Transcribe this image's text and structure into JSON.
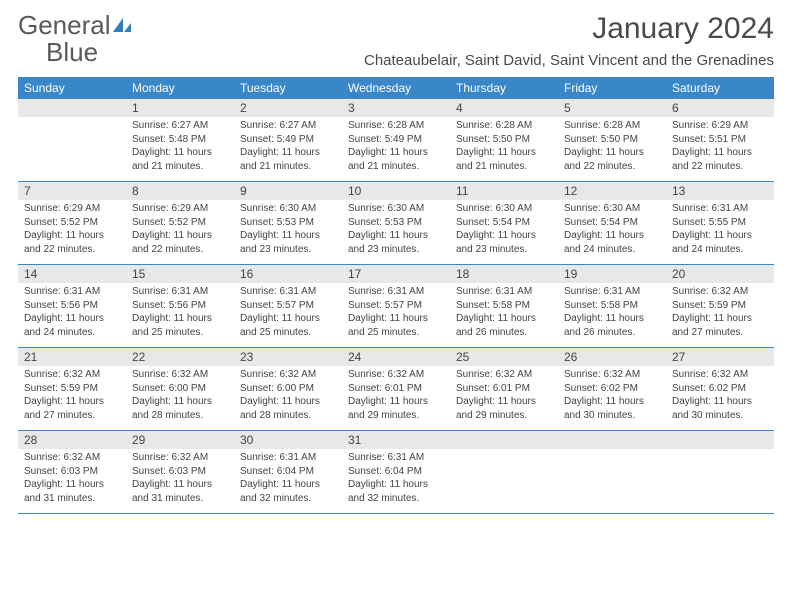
{
  "logo": {
    "text1": "General",
    "text2": "Blue"
  },
  "title": "January 2024",
  "location": "Chateaubelair, Saint David, Saint Vincent and the Grenadines",
  "weekdays": [
    "Sunday",
    "Monday",
    "Tuesday",
    "Wednesday",
    "Thursday",
    "Friday",
    "Saturday"
  ],
  "colors": {
    "header_bg": "#3a87c8",
    "daynum_bg": "#e8e8e8",
    "text": "#444444",
    "logo_gray": "#5a5a5a",
    "logo_blue": "#2f7fbf"
  },
  "weeks": [
    {
      "nums": [
        "",
        "1",
        "2",
        "3",
        "4",
        "5",
        "6"
      ],
      "cells": [
        {
          "empty": true
        },
        {
          "sunrise": "Sunrise: 6:27 AM",
          "sunset": "Sunset: 5:48 PM",
          "day1": "Daylight: 11 hours",
          "day2": "and 21 minutes."
        },
        {
          "sunrise": "Sunrise: 6:27 AM",
          "sunset": "Sunset: 5:49 PM",
          "day1": "Daylight: 11 hours",
          "day2": "and 21 minutes."
        },
        {
          "sunrise": "Sunrise: 6:28 AM",
          "sunset": "Sunset: 5:49 PM",
          "day1": "Daylight: 11 hours",
          "day2": "and 21 minutes."
        },
        {
          "sunrise": "Sunrise: 6:28 AM",
          "sunset": "Sunset: 5:50 PM",
          "day1": "Daylight: 11 hours",
          "day2": "and 21 minutes."
        },
        {
          "sunrise": "Sunrise: 6:28 AM",
          "sunset": "Sunset: 5:50 PM",
          "day1": "Daylight: 11 hours",
          "day2": "and 22 minutes."
        },
        {
          "sunrise": "Sunrise: 6:29 AM",
          "sunset": "Sunset: 5:51 PM",
          "day1": "Daylight: 11 hours",
          "day2": "and 22 minutes."
        }
      ]
    },
    {
      "nums": [
        "7",
        "8",
        "9",
        "10",
        "11",
        "12",
        "13"
      ],
      "cells": [
        {
          "sunrise": "Sunrise: 6:29 AM",
          "sunset": "Sunset: 5:52 PM",
          "day1": "Daylight: 11 hours",
          "day2": "and 22 minutes."
        },
        {
          "sunrise": "Sunrise: 6:29 AM",
          "sunset": "Sunset: 5:52 PM",
          "day1": "Daylight: 11 hours",
          "day2": "and 22 minutes."
        },
        {
          "sunrise": "Sunrise: 6:30 AM",
          "sunset": "Sunset: 5:53 PM",
          "day1": "Daylight: 11 hours",
          "day2": "and 23 minutes."
        },
        {
          "sunrise": "Sunrise: 6:30 AM",
          "sunset": "Sunset: 5:53 PM",
          "day1": "Daylight: 11 hours",
          "day2": "and 23 minutes."
        },
        {
          "sunrise": "Sunrise: 6:30 AM",
          "sunset": "Sunset: 5:54 PM",
          "day1": "Daylight: 11 hours",
          "day2": "and 23 minutes."
        },
        {
          "sunrise": "Sunrise: 6:30 AM",
          "sunset": "Sunset: 5:54 PM",
          "day1": "Daylight: 11 hours",
          "day2": "and 24 minutes."
        },
        {
          "sunrise": "Sunrise: 6:31 AM",
          "sunset": "Sunset: 5:55 PM",
          "day1": "Daylight: 11 hours",
          "day2": "and 24 minutes."
        }
      ]
    },
    {
      "nums": [
        "14",
        "15",
        "16",
        "17",
        "18",
        "19",
        "20"
      ],
      "cells": [
        {
          "sunrise": "Sunrise: 6:31 AM",
          "sunset": "Sunset: 5:56 PM",
          "day1": "Daylight: 11 hours",
          "day2": "and 24 minutes."
        },
        {
          "sunrise": "Sunrise: 6:31 AM",
          "sunset": "Sunset: 5:56 PM",
          "day1": "Daylight: 11 hours",
          "day2": "and 25 minutes."
        },
        {
          "sunrise": "Sunrise: 6:31 AM",
          "sunset": "Sunset: 5:57 PM",
          "day1": "Daylight: 11 hours",
          "day2": "and 25 minutes."
        },
        {
          "sunrise": "Sunrise: 6:31 AM",
          "sunset": "Sunset: 5:57 PM",
          "day1": "Daylight: 11 hours",
          "day2": "and 25 minutes."
        },
        {
          "sunrise": "Sunrise: 6:31 AM",
          "sunset": "Sunset: 5:58 PM",
          "day1": "Daylight: 11 hours",
          "day2": "and 26 minutes."
        },
        {
          "sunrise": "Sunrise: 6:31 AM",
          "sunset": "Sunset: 5:58 PM",
          "day1": "Daylight: 11 hours",
          "day2": "and 26 minutes."
        },
        {
          "sunrise": "Sunrise: 6:32 AM",
          "sunset": "Sunset: 5:59 PM",
          "day1": "Daylight: 11 hours",
          "day2": "and 27 minutes."
        }
      ]
    },
    {
      "nums": [
        "21",
        "22",
        "23",
        "24",
        "25",
        "26",
        "27"
      ],
      "cells": [
        {
          "sunrise": "Sunrise: 6:32 AM",
          "sunset": "Sunset: 5:59 PM",
          "day1": "Daylight: 11 hours",
          "day2": "and 27 minutes."
        },
        {
          "sunrise": "Sunrise: 6:32 AM",
          "sunset": "Sunset: 6:00 PM",
          "day1": "Daylight: 11 hours",
          "day2": "and 28 minutes."
        },
        {
          "sunrise": "Sunrise: 6:32 AM",
          "sunset": "Sunset: 6:00 PM",
          "day1": "Daylight: 11 hours",
          "day2": "and 28 minutes."
        },
        {
          "sunrise": "Sunrise: 6:32 AM",
          "sunset": "Sunset: 6:01 PM",
          "day1": "Daylight: 11 hours",
          "day2": "and 29 minutes."
        },
        {
          "sunrise": "Sunrise: 6:32 AM",
          "sunset": "Sunset: 6:01 PM",
          "day1": "Daylight: 11 hours",
          "day2": "and 29 minutes."
        },
        {
          "sunrise": "Sunrise: 6:32 AM",
          "sunset": "Sunset: 6:02 PM",
          "day1": "Daylight: 11 hours",
          "day2": "and 30 minutes."
        },
        {
          "sunrise": "Sunrise: 6:32 AM",
          "sunset": "Sunset: 6:02 PM",
          "day1": "Daylight: 11 hours",
          "day2": "and 30 minutes."
        }
      ]
    },
    {
      "nums": [
        "28",
        "29",
        "30",
        "31",
        "",
        "",
        ""
      ],
      "cells": [
        {
          "sunrise": "Sunrise: 6:32 AM",
          "sunset": "Sunset: 6:03 PM",
          "day1": "Daylight: 11 hours",
          "day2": "and 31 minutes."
        },
        {
          "sunrise": "Sunrise: 6:32 AM",
          "sunset": "Sunset: 6:03 PM",
          "day1": "Daylight: 11 hours",
          "day2": "and 31 minutes."
        },
        {
          "sunrise": "Sunrise: 6:31 AM",
          "sunset": "Sunset: 6:04 PM",
          "day1": "Daylight: 11 hours",
          "day2": "and 32 minutes."
        },
        {
          "sunrise": "Sunrise: 6:31 AM",
          "sunset": "Sunset: 6:04 PM",
          "day1": "Daylight: 11 hours",
          "day2": "and 32 minutes."
        },
        {
          "empty": true
        },
        {
          "empty": true
        },
        {
          "empty": true
        }
      ]
    }
  ]
}
